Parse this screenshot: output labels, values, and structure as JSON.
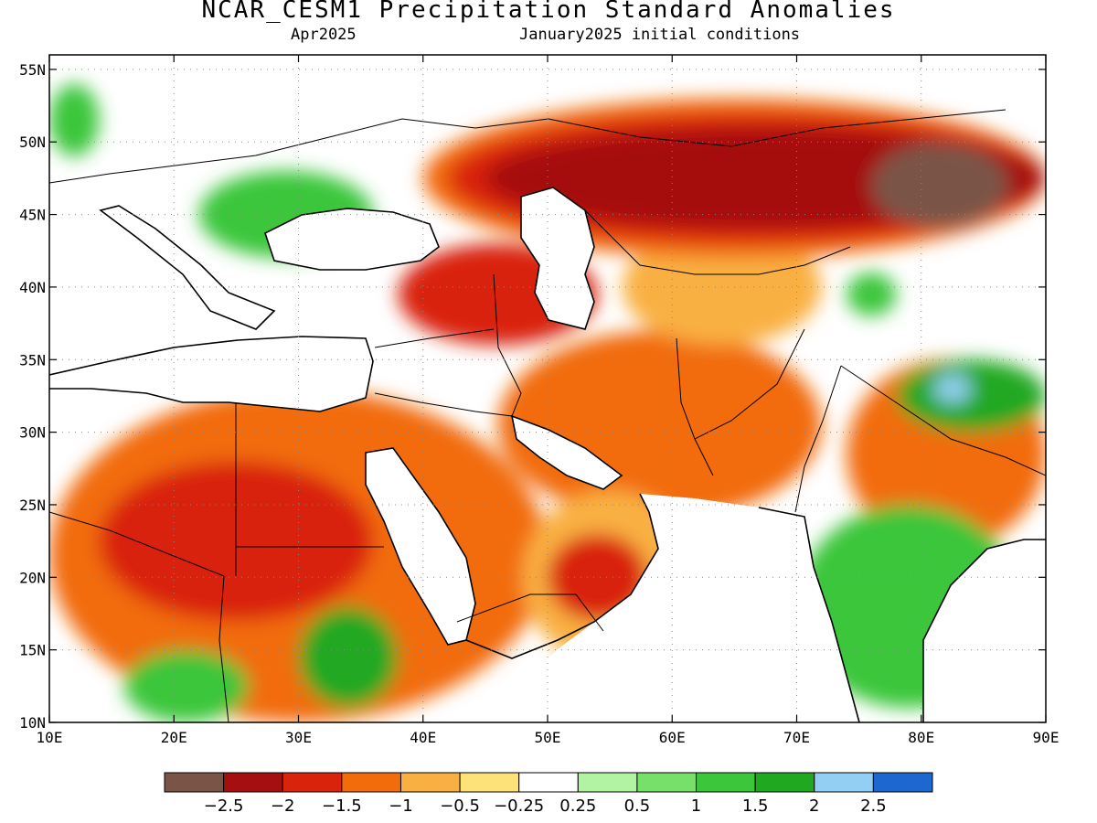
{
  "title": "NCAR_CESM1 Precipitation Standard Anomalies",
  "valid_month": "Apr2025",
  "init_text": "January2025 initial conditions",
  "map": {
    "lon_range": [
      10,
      90
    ],
    "lat_range": [
      10,
      56
    ],
    "lon_ticks": [
      {
        "value": 10,
        "label": "10E"
      },
      {
        "value": 20,
        "label": "20E"
      },
      {
        "value": 30,
        "label": "30E"
      },
      {
        "value": 40,
        "label": "40E"
      },
      {
        "value": 50,
        "label": "50E"
      },
      {
        "value": 60,
        "label": "60E"
      },
      {
        "value": 70,
        "label": "70E"
      },
      {
        "value": 80,
        "label": "80E"
      },
      {
        "value": 90,
        "label": "90E"
      }
    ],
    "lat_ticks": [
      {
        "value": 10,
        "label": "10N"
      },
      {
        "value": 15,
        "label": "15N"
      },
      {
        "value": 20,
        "label": "20N"
      },
      {
        "value": 25,
        "label": "25N"
      },
      {
        "value": 30,
        "label": "30N"
      },
      {
        "value": 35,
        "label": "35N"
      },
      {
        "value": 40,
        "label": "40N"
      },
      {
        "value": 45,
        "label": "45N"
      },
      {
        "value": 50,
        "label": "50N"
      },
      {
        "value": 55,
        "label": "55N"
      }
    ],
    "grid": true
  },
  "colorbar": {
    "colors": [
      "#7a5547",
      "#a50f0f",
      "#d9230b",
      "#f26c0c",
      "#f9b042",
      "#fde279",
      "#ffffff",
      "#b1f3a2",
      "#76e06a",
      "#3bc63b",
      "#21a821",
      "#92cff2",
      "#1c68d0"
    ],
    "labels": [
      "−2.5",
      "−2",
      "−1.5",
      "−1",
      "−0.5",
      "−0.25",
      "0.25",
      "0.5",
      "1",
      "1.5",
      "2",
      "2.5"
    ]
  },
  "anomaly_regions": [
    {
      "value": "-1",
      "lon": [
        10,
        50
      ],
      "lat": [
        10,
        33
      ]
    },
    {
      "value": "-1",
      "lon": [
        46,
        72
      ],
      "lat": [
        24,
        37
      ]
    },
    {
      "value": "-1",
      "lon": [
        74,
        90
      ],
      "lat": [
        22,
        35
      ]
    },
    {
      "value": "-1.5",
      "lon": [
        14,
        36
      ],
      "lat": [
        17,
        28
      ]
    },
    {
      "value": "-0.5",
      "lon": [
        48,
        62
      ],
      "lat": [
        14,
        26
      ]
    },
    {
      "value": "-1.5",
      "lon": [
        50,
        58
      ],
      "lat": [
        17,
        23
      ]
    },
    {
      "value": "-1.5",
      "lon": [
        38,
        54
      ],
      "lat": [
        36,
        43
      ]
    },
    {
      "value": "-0.5",
      "lon": [
        56,
        72
      ],
      "lat": [
        36,
        44
      ]
    },
    {
      "value": "-1",
      "lon": [
        40,
        90
      ],
      "lat": [
        42,
        53
      ]
    },
    {
      "value": "-1.5",
      "lon": [
        42,
        90
      ],
      "lat": [
        43,
        52
      ]
    },
    {
      "value": "-2",
      "lon": [
        45,
        90
      ],
      "lat": [
        44,
        51
      ]
    },
    {
      "value": "-2.5",
      "lon": [
        76,
        87
      ],
      "lat": [
        44,
        50
      ]
    },
    {
      "value": "1",
      "lon": [
        22,
        36
      ],
      "lat": [
        42,
        48
      ]
    },
    {
      "value": "1",
      "lon": [
        10,
        14
      ],
      "lat": [
        49,
        54
      ]
    },
    {
      "value": "1.5",
      "lon": [
        30,
        38
      ],
      "lat": [
        11,
        18
      ]
    },
    {
      "value": "1",
      "lon": [
        16,
        26
      ],
      "lat": [
        10,
        15
      ]
    },
    {
      "value": "1.5",
      "lon": [
        78,
        90
      ],
      "lat": [
        30,
        35
      ]
    },
    {
      "value": "2",
      "lon": [
        81,
        84
      ],
      "lat": [
        32,
        34
      ]
    },
    {
      "value": "1",
      "lon": [
        70,
        88
      ],
      "lat": [
        11,
        25
      ]
    },
    {
      "value": "1",
      "lon": [
        74,
        78
      ],
      "lat": [
        38,
        41
      ]
    }
  ]
}
